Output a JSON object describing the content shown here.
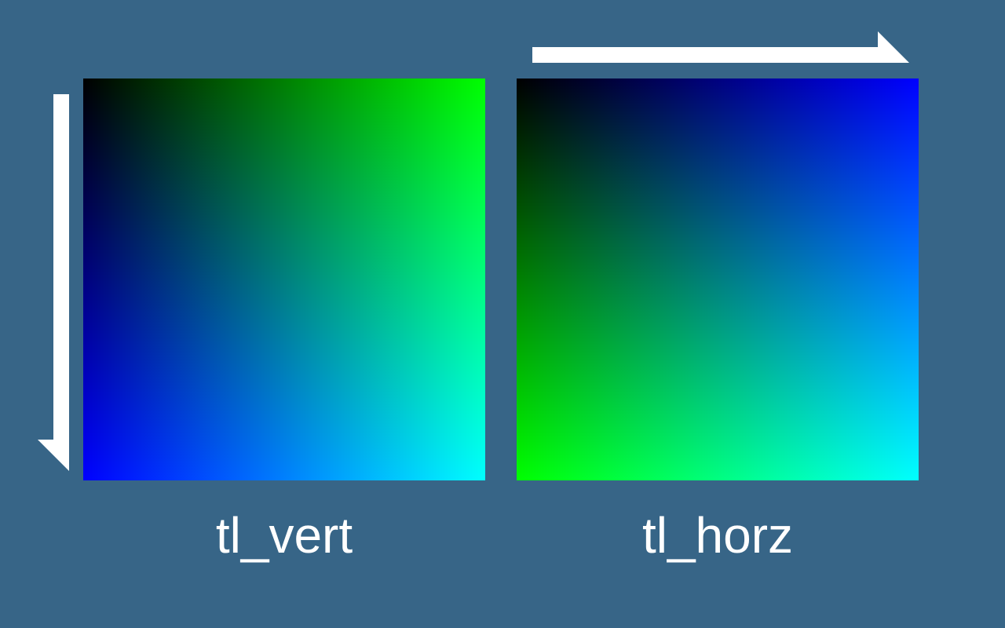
{
  "panels": [
    {
      "id": "tl_vert",
      "label": "tl_vert",
      "corners": {
        "top_left": "#000000",
        "top_right": "#00ff00",
        "bottom_left": "#0000ff",
        "bottom_right": "#00ffff"
      }
    },
    {
      "id": "tl_horz",
      "label": "tl_horz",
      "corners": {
        "top_left": "#000000",
        "top_right": "#0000ff",
        "bottom_left": "#00ff00",
        "bottom_right": "#00ffff"
      }
    }
  ],
  "colors": {
    "background": "#376587",
    "arrow": "#ffffff",
    "label": "#ffffff"
  }
}
